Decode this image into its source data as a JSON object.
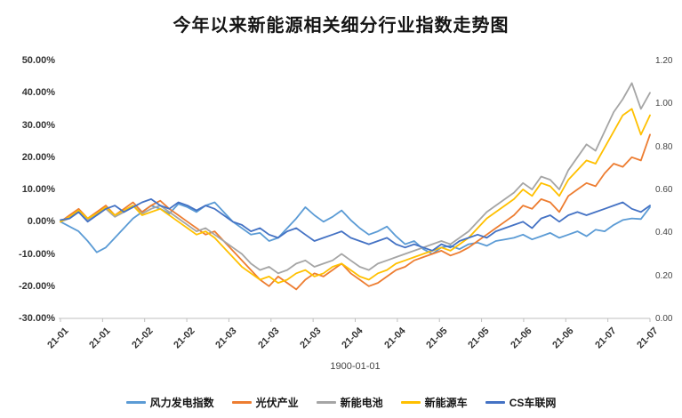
{
  "chart_data": {
    "type": "line",
    "title": "今年以来新能源相关细分行业指数走势图",
    "x_axis_title": "1900-01-01",
    "x_tick_labels": [
      "21-01",
      "21-01",
      "21-02",
      "21-02",
      "21-03",
      "21-03",
      "21-03",
      "21-04",
      "21-04",
      "21-05",
      "21-05",
      "21-06",
      "21-06",
      "21-07",
      "21-07"
    ],
    "left_axis": {
      "min": -30,
      "max": 50,
      "step": 10,
      "unit": "percent",
      "tick_labels": [
        "50.00%",
        "40.00%",
        "30.00%",
        "20.00%",
        "10.00%",
        "0.00%",
        "-10.00%",
        "-20.00%",
        "-30.00%"
      ]
    },
    "right_axis": {
      "min": 0,
      "max": 1.2,
      "step": 0.2,
      "tick_labels": [
        "1.20",
        "1.00",
        "0.80",
        "0.60",
        "0.40",
        "0.20",
        "0.00"
      ]
    },
    "grid": false,
    "legend_position": "bottom",
    "series": [
      {
        "name": "风力发电指数",
        "color": "#5B9BD5",
        "values": [
          0,
          -1.5,
          -3,
          -6,
          -9.5,
          -8,
          -5,
          -2,
          1,
          3,
          5,
          4,
          2.5,
          5.5,
          4.5,
          3,
          5,
          6,
          3,
          0,
          -2,
          -4,
          -3.5,
          -6,
          -5,
          -2,
          1,
          4.5,
          2,
          0,
          1.5,
          3.5,
          0.5,
          -2,
          -4,
          -3,
          -1.5,
          -4.5,
          -7,
          -6,
          -8.5,
          -10,
          -8,
          -7.5,
          -8.5,
          -7,
          -6.5,
          -7.5,
          -6,
          -5.5,
          -5,
          -4,
          -5.5,
          -4.5,
          -3.5,
          -5,
          -4,
          -3,
          -4.5,
          -2.5,
          -3,
          -1,
          0.5,
          1,
          0.8,
          4.5
        ]
      },
      {
        "name": "光伏产业",
        "color": "#ED7D31",
        "values": [
          0,
          2,
          4,
          1,
          3,
          5,
          2,
          4,
          6,
          3,
          5,
          6.5,
          4,
          2,
          0,
          -2,
          -4,
          -3,
          -6,
          -9,
          -12,
          -15,
          -18,
          -20,
          -17,
          -19,
          -21,
          -18,
          -16,
          -17,
          -15,
          -13,
          -16,
          -18,
          -20,
          -19,
          -17,
          -15,
          -14,
          -12,
          -11,
          -10,
          -9,
          -10.5,
          -9.5,
          -8,
          -6,
          -4,
          -2,
          0,
          2,
          5,
          4,
          7,
          6,
          3,
          8,
          10,
          12,
          11,
          15,
          18,
          17,
          20,
          19,
          27
        ]
      },
      {
        "name": "新能电池",
        "color": "#A5A5A5",
        "values": [
          0,
          1,
          3,
          0.5,
          2,
          4,
          1.5,
          3,
          5,
          2.5,
          4,
          5,
          3,
          1,
          -1,
          -3,
          -2,
          -4,
          -6,
          -8,
          -10,
          -13,
          -15,
          -14,
          -16,
          -15,
          -13,
          -12,
          -14,
          -13,
          -12,
          -10,
          -12,
          -14,
          -15,
          -13,
          -12,
          -11,
          -10,
          -9,
          -8,
          -7,
          -6,
          -7,
          -5,
          -3,
          0,
          3,
          5,
          7,
          9,
          12,
          10,
          14,
          13,
          10,
          16,
          20,
          24,
          22,
          28,
          34,
          38,
          43,
          35,
          40
        ]
      },
      {
        "name": "新能源车",
        "color": "#FFC000",
        "values": [
          0,
          1.5,
          3.5,
          1,
          2.5,
          4.5,
          2,
          3.5,
          5,
          2,
          3,
          4,
          2,
          0,
          -2,
          -4,
          -3,
          -5,
          -8,
          -11,
          -14,
          -16,
          -18,
          -17,
          -19,
          -18,
          -16,
          -15,
          -17,
          -16,
          -14,
          -13,
          -15,
          -17,
          -18,
          -16,
          -15,
          -13,
          -12,
          -11,
          -10,
          -9,
          -8,
          -9,
          -7,
          -5,
          -2,
          1,
          3,
          5,
          7,
          10,
          8,
          12,
          11,
          8,
          13,
          16,
          19,
          18,
          23,
          28,
          33,
          35,
          27,
          33
        ]
      },
      {
        "name": "CS车联网",
        "color": "#4472C4",
        "values": [
          0.5,
          1,
          3,
          0,
          2,
          4,
          5,
          3,
          4.5,
          6,
          7,
          5,
          4,
          6,
          5,
          3.5,
          5,
          4,
          2,
          0,
          -1,
          -3,
          -2,
          -4,
          -5,
          -3,
          -2,
          -4,
          -6,
          -5,
          -4,
          -3,
          -5,
          -6,
          -7,
          -6,
          -5,
          -7,
          -8,
          -7,
          -8,
          -9,
          -7,
          -8,
          -6,
          -5,
          -4,
          -5,
          -3,
          -2,
          -1,
          0,
          -2,
          1,
          2,
          0,
          2,
          3,
          2,
          3,
          4,
          5,
          6,
          4,
          3,
          5
        ]
      }
    ]
  }
}
